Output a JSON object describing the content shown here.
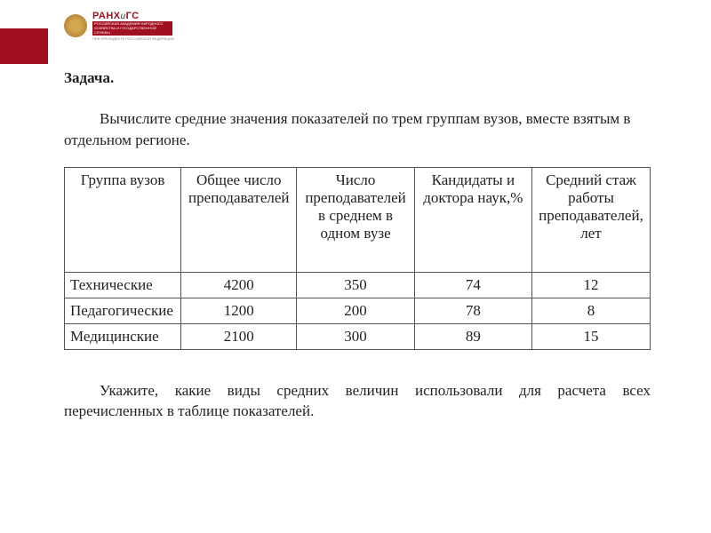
{
  "logo": {
    "main_a": "РАНХ",
    "main_i": "и",
    "main_b": "ГС",
    "sub": "РОССИЙСКАЯ АКАДЕМИЯ НАРОДНОГО ХОЗЯЙСТВА И ГОСУДАРСТВЕННОЙ СЛУЖБЫ",
    "extra": "ПРИ ПРЕЗИДЕНТЕ РОССИЙСКОЙ ФЕДЕРАЦИИ"
  },
  "title": "Задача.",
  "intro": "Вычислите средние значения показателей по трем группам вузов, вместе взятым в отдельном регионе.",
  "outro": "Укажите, какие виды средних величин использовали для расчета всех перечисленных в таблице показателей.",
  "table": {
    "columns": [
      "Группа вузов",
      "Общее число преподавателей",
      "Число преподавателей в среднем в одном вузе",
      "Кандидаты и доктора наук,%",
      "Средний стаж работы преподавателей, лет"
    ],
    "rows": [
      {
        "label": "Технические",
        "c1": "4200",
        "c2": "350",
        "c3": "74",
        "c4": "12"
      },
      {
        "label": "Педагогические",
        "c1": "1200",
        "c2": "200",
        "c3": "78",
        "c4": "8"
      },
      {
        "label": "Медицинские",
        "c1": "2100",
        "c2": "300",
        "c3": "89",
        "c4": "15"
      }
    ]
  }
}
